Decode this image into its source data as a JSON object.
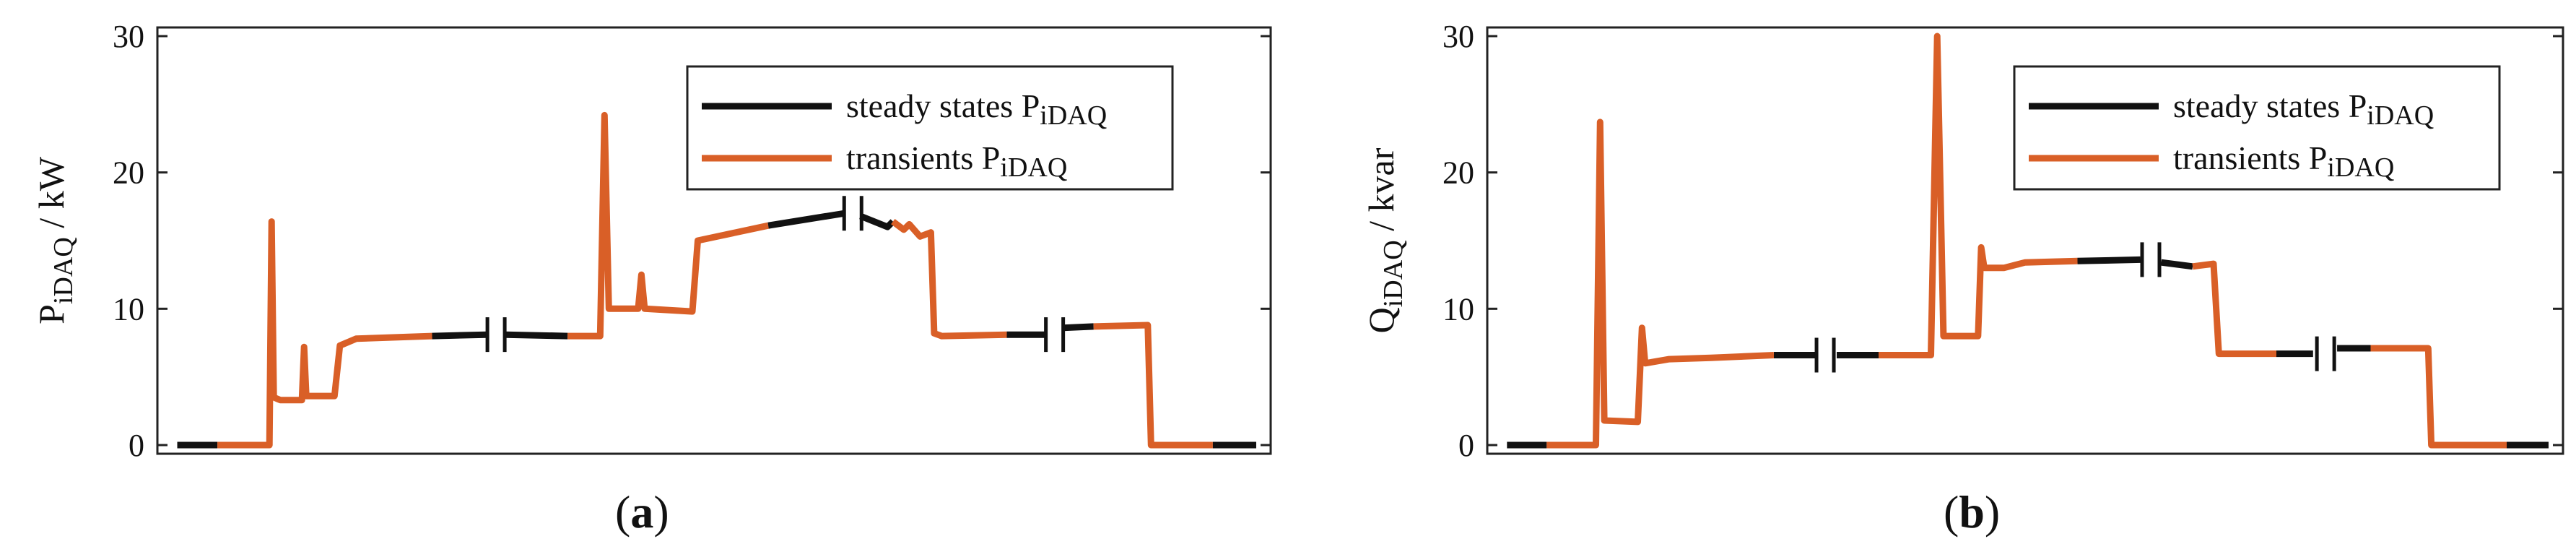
{
  "figure": {
    "panel_labels": [
      "(",
      "a",
      ")",
      "(",
      "b",
      ")"
    ]
  },
  "colors": {
    "steady": "#111111",
    "transient": "#d95f27",
    "axis": "#222222",
    "legend_border": "#222222"
  },
  "chart_data": [
    {
      "id": "a",
      "type": "line",
      "ylabel_main": "P",
      "ylabel_sub": "iDAQ",
      "ylabel_unit": " / kW",
      "ylim": [
        0,
        30
      ],
      "yticks": [
        0,
        10,
        20,
        30
      ],
      "xlim": [
        0,
        100
      ],
      "grid": false,
      "legend_position": "top-right",
      "legend": [
        {
          "text": "steady states P",
          "sub": "iDAQ",
          "color_key": "steady"
        },
        {
          "text": "transients P",
          "sub": "iDAQ",
          "color_key": "transient"
        }
      ],
      "series": [
        {
          "color_key": "steady",
          "points": [
            [
              0.5,
              0
            ],
            [
              4.2,
              0
            ]
          ]
        },
        {
          "color_key": "transient",
          "points": [
            [
              4.2,
              0
            ],
            [
              9.0,
              0
            ],
            [
              9.2,
              16.4
            ],
            [
              9.4,
              3.5
            ],
            [
              10.0,
              3.3
            ],
            [
              12.0,
              3.3
            ],
            [
              12.2,
              7.2
            ],
            [
              12.4,
              3.6
            ],
            [
              15.0,
              3.6
            ],
            [
              15.5,
              7.3
            ],
            [
              17.0,
              7.8
            ],
            [
              24.0,
              8.0
            ]
          ]
        },
        {
          "color_key": "steady",
          "points": [
            [
              24.0,
              8.0
            ],
            [
              29.0,
              8.1
            ]
          ]
        },
        {
          "color_key": "steady",
          "points": [
            [
              30.8,
              8.1
            ],
            [
              36.5,
              8.0
            ]
          ]
        },
        {
          "color_key": "transient",
          "points": [
            [
              36.5,
              8.0
            ],
            [
              39.5,
              8.0
            ],
            [
              39.9,
              24.2
            ],
            [
              40.3,
              10.0
            ],
            [
              43.0,
              10.0
            ],
            [
              43.3,
              12.5
            ],
            [
              43.6,
              10.0
            ],
            [
              48.0,
              9.8
            ],
            [
              48.5,
              15.0
            ],
            [
              55.0,
              16.1
            ]
          ]
        },
        {
          "color_key": "steady",
          "points": [
            [
              55.0,
              16.1
            ],
            [
              62.0,
              17.0
            ]
          ]
        },
        {
          "color_key": "steady",
          "points": [
            [
              63.5,
              16.8
            ],
            [
              66.0,
              16.0
            ],
            [
              66.5,
              16.4
            ]
          ]
        },
        {
          "color_key": "transient",
          "points": [
            [
              66.5,
              16.4
            ],
            [
              67.5,
              15.8
            ],
            [
              68.0,
              16.2
            ],
            [
              69.0,
              15.3
            ],
            [
              70.0,
              15.6
            ],
            [
              70.3,
              8.2
            ],
            [
              71.0,
              8.0
            ],
            [
              77.0,
              8.1
            ]
          ]
        },
        {
          "color_key": "steady",
          "points": [
            [
              77.0,
              8.1
            ],
            [
              80.5,
              8.1
            ]
          ]
        },
        {
          "color_key": "steady",
          "points": [
            [
              82.2,
              8.6
            ],
            [
              85.0,
              8.7
            ]
          ]
        },
        {
          "color_key": "transient",
          "points": [
            [
              85.0,
              8.7
            ],
            [
              90.0,
              8.8
            ],
            [
              90.3,
              0
            ],
            [
              96.0,
              0
            ]
          ]
        },
        {
          "color_key": "steady",
          "points": [
            [
              96.0,
              0
            ],
            [
              100.0,
              0
            ]
          ]
        }
      ],
      "breaks": [
        29.9,
        62.8,
        81.4
      ]
    },
    {
      "id": "b",
      "type": "line",
      "ylabel_main": "Q",
      "ylabel_sub": "iDAQ",
      "ylabel_unit": " / kvar",
      "ylim": [
        0,
        30
      ],
      "yticks": [
        0,
        10,
        20,
        30
      ],
      "xlim": [
        0,
        100
      ],
      "grid": false,
      "legend_position": "top-right",
      "legend": [
        {
          "text": "steady states P",
          "sub": "iDAQ",
          "color_key": "steady"
        },
        {
          "text": "transients P",
          "sub": "iDAQ",
          "color_key": "transient"
        }
      ],
      "series": [
        {
          "color_key": "steady",
          "points": [
            [
              0.5,
              0
            ],
            [
              4.3,
              0
            ]
          ]
        },
        {
          "color_key": "transient",
          "points": [
            [
              4.3,
              0
            ],
            [
              9.0,
              0
            ],
            [
              9.4,
              23.7
            ],
            [
              9.8,
              1.8
            ],
            [
              13.0,
              1.7
            ],
            [
              13.4,
              8.6
            ],
            [
              13.7,
              6.0
            ],
            [
              16.0,
              6.3
            ],
            [
              20.0,
              6.4
            ],
            [
              26.0,
              6.6
            ]
          ]
        },
        {
          "color_key": "steady",
          "points": [
            [
              26.0,
              6.6
            ],
            [
              30.0,
              6.6
            ]
          ]
        },
        {
          "color_key": "steady",
          "points": [
            [
              32.0,
              6.6
            ],
            [
              36.0,
              6.6
            ]
          ]
        },
        {
          "color_key": "transient",
          "points": [
            [
              36.0,
              6.6
            ],
            [
              41.0,
              6.6
            ],
            [
              41.6,
              30.0
            ],
            [
              42.2,
              8.0
            ],
            [
              45.5,
              8.0
            ],
            [
              45.8,
              14.5
            ],
            [
              46.1,
              13.0
            ],
            [
              48.0,
              13.0
            ],
            [
              50.0,
              13.4
            ],
            [
              55.0,
              13.5
            ]
          ]
        },
        {
          "color_key": "steady",
          "points": [
            [
              55.0,
              13.5
            ],
            [
              61.0,
              13.6
            ]
          ]
        },
        {
          "color_key": "steady",
          "points": [
            [
              63.0,
              13.4
            ],
            [
              66.0,
              13.1
            ]
          ]
        },
        {
          "color_key": "transient",
          "points": [
            [
              66.0,
              13.1
            ],
            [
              68.0,
              13.3
            ],
            [
              68.5,
              6.7
            ],
            [
              72.0,
              6.7
            ],
            [
              74.0,
              6.7
            ]
          ]
        },
        {
          "color_key": "steady",
          "points": [
            [
              74.0,
              6.7
            ],
            [
              77.5,
              6.7
            ]
          ]
        },
        {
          "color_key": "steady",
          "points": [
            [
              79.8,
              7.1
            ],
            [
              83.0,
              7.1
            ]
          ]
        },
        {
          "color_key": "transient",
          "points": [
            [
              83.0,
              7.1
            ],
            [
              88.5,
              7.1
            ],
            [
              88.8,
              0
            ],
            [
              96.0,
              0
            ]
          ]
        },
        {
          "color_key": "steady",
          "points": [
            [
              96.0,
              0
            ],
            [
              100.0,
              0
            ]
          ]
        }
      ],
      "breaks": [
        30.9,
        62.0,
        78.7
      ]
    }
  ]
}
